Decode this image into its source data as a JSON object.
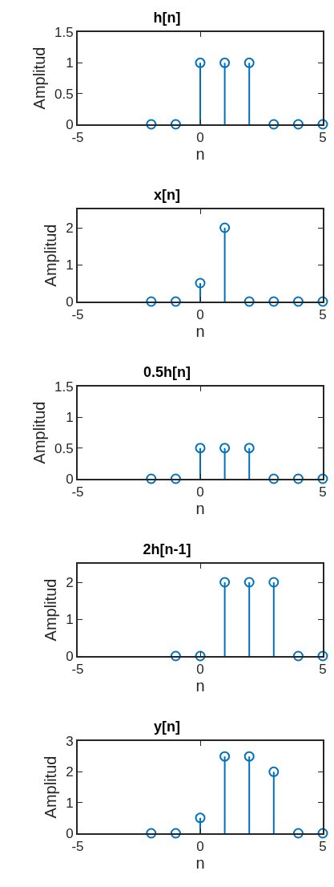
{
  "chart_data": [
    {
      "type": "lollipop",
      "title": "h[n]",
      "xlabel": "n",
      "ylabel": "Amplitud",
      "x": [
        -2,
        -1,
        0,
        1,
        2,
        3,
        4,
        5
      ],
      "values": [
        0,
        0,
        1,
        1,
        1,
        0,
        0,
        0
      ],
      "color": "#0072bd",
      "marker": "circle",
      "xlim": [
        -5,
        5
      ],
      "xticks": [
        -5,
        0,
        5
      ],
      "ylim": [
        0,
        1.5
      ],
      "yticks": [
        0,
        0.5,
        1,
        1.5
      ]
    },
    {
      "type": "lollipop",
      "title": "x[n]",
      "xlabel": "n",
      "ylabel": "Amplitud",
      "x": [
        -2,
        -1,
        0,
        1,
        2,
        3,
        4,
        5
      ],
      "values": [
        0,
        0,
        0.5,
        2,
        0,
        0,
        0,
        0
      ],
      "color": "#0072bd",
      "marker": "circle",
      "xlim": [
        -5,
        5
      ],
      "xticks": [
        -5,
        0,
        5
      ],
      "ylim": [
        0,
        2.5
      ],
      "yticks": [
        0,
        1,
        2
      ]
    },
    {
      "type": "lollipop",
      "title": "0.5h[n]",
      "xlabel": "n",
      "ylabel": "Amplitud",
      "x": [
        -2,
        -1,
        0,
        1,
        2,
        3,
        4,
        5
      ],
      "values": [
        0,
        0,
        0.5,
        0.5,
        0.5,
        0,
        0,
        0
      ],
      "color": "#0072bd",
      "marker": "circle",
      "xlim": [
        -5,
        5
      ],
      "xticks": [
        -5,
        0,
        5
      ],
      "ylim": [
        0,
        1.5
      ],
      "yticks": [
        0,
        0.5,
        1,
        1.5
      ]
    },
    {
      "type": "lollipop",
      "title": "2h[n-1]",
      "xlabel": "n",
      "ylabel": "Amplitud",
      "x": [
        -1,
        0,
        1,
        2,
        3,
        4,
        5
      ],
      "values": [
        0,
        0,
        2,
        2,
        2,
        0,
        0
      ],
      "color": "#0072bd",
      "marker": "circle",
      "xlim": [
        -5,
        5
      ],
      "xticks": [
        -5,
        0,
        5
      ],
      "ylim": [
        0,
        2.5
      ],
      "yticks": [
        0,
        1,
        2
      ]
    },
    {
      "type": "lollipop",
      "title": "y[n]",
      "xlabel": "n",
      "ylabel": "Amplitud",
      "x": [
        -2,
        -1,
        0,
        1,
        2,
        3,
        4,
        5
      ],
      "values": [
        0,
        0,
        0.5,
        2.5,
        2.5,
        2,
        0,
        0
      ],
      "color": "#0072bd",
      "marker": "circle",
      "xlim": [
        -5,
        5
      ],
      "xticks": [
        -5,
        0,
        5
      ],
      "ylim": [
        0,
        3
      ],
      "yticks": [
        0,
        1,
        2,
        3
      ]
    }
  ]
}
